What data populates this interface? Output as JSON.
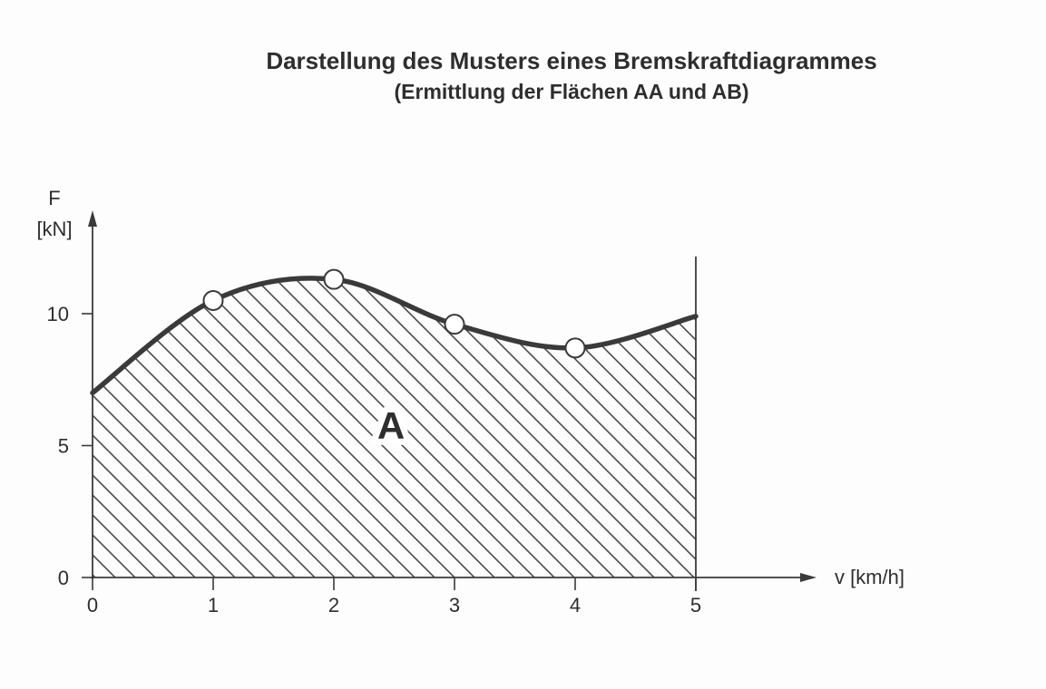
{
  "chart_data": {
    "type": "line",
    "title": "Darstellung des Musters eines Bremskraftdiagrammes",
    "subtitle": "(Ermittlung der Flächen AA und AB)",
    "xlabel": "v [km/h]",
    "ylabel_symbol": "F",
    "ylabel_unit": "[kN]",
    "xlim": [
      0,
      5
    ],
    "ylim": [
      0,
      12
    ],
    "x_ticks": [
      "0",
      "1",
      "2",
      "3",
      "4",
      "5"
    ],
    "y_ticks": [
      {
        "value": 0,
        "label": "0"
      },
      {
        "value": 5,
        "label": "5"
      },
      {
        "value": 10,
        "label": "10"
      }
    ],
    "series": [
      {
        "name": "Bremskraft",
        "x": [
          0,
          1,
          2,
          3,
          4,
          5
        ],
        "y": [
          7.0,
          10.5,
          11.3,
          9.6,
          8.7,
          9.9
        ]
      }
    ],
    "markers": [
      {
        "x": 1,
        "y": 10.5
      },
      {
        "x": 2,
        "y": 11.3
      },
      {
        "x": 3,
        "y": 9.6
      },
      {
        "x": 4,
        "y": 8.7
      }
    ],
    "area_label": "A",
    "area_fill": "diagonal hatch",
    "grid": false,
    "colors": {
      "curve": "#3a3a3a",
      "axis": "#3a3a3a",
      "hatch": "#4a4a4a",
      "text": "#2e2e2e"
    }
  }
}
